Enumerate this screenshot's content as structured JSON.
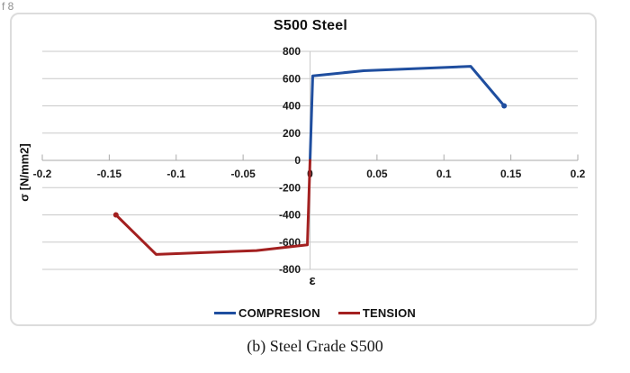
{
  "page": {
    "corner_text": "f 8",
    "caption": "(b) Steel Grade S500"
  },
  "chart_data": {
    "type": "line",
    "title": "S500 Steel",
    "xlabel": "ε",
    "ylabel": "σ [N/mm2]",
    "xlim": [
      -0.2,
      0.2
    ],
    "ylim": [
      -800,
      800
    ],
    "grid": true,
    "legend_position": "bottom",
    "x_ticks": [
      -0.2,
      -0.15,
      -0.1,
      -0.05,
      0,
      0.05,
      0.1,
      0.15,
      0.2
    ],
    "x_tick_labels": [
      "-0.2",
      "-0.15",
      "-0.1",
      "-0.05",
      "0",
      "0.05",
      "0.1",
      "0.15",
      "0.2"
    ],
    "y_ticks": [
      800,
      600,
      400,
      200,
      0,
      -200,
      -400,
      -600,
      -800
    ],
    "y_tick_labels": [
      "800",
      "600",
      "400",
      "200",
      "0",
      "-200",
      "-400",
      "-600",
      "-800"
    ],
    "series": [
      {
        "name": "COMPRESION",
        "color": "#1F4E9F",
        "points": [
          [
            0,
            0
          ],
          [
            0.002,
            620
          ],
          [
            0.04,
            658
          ],
          [
            0.12,
            690
          ],
          [
            0.145,
            400
          ]
        ],
        "end_marker": true
      },
      {
        "name": "TENSION",
        "color": "#A32020",
        "points": [
          [
            0,
            0
          ],
          [
            -0.002,
            -620
          ],
          [
            -0.04,
            -662
          ],
          [
            -0.115,
            -690
          ],
          [
            -0.145,
            -400
          ]
        ],
        "end_marker": true
      }
    ],
    "colors": {
      "gridline": "#c9c9c9",
      "axis": "#aaaaaa",
      "tick_label": "#1a1a1a",
      "frame_border": "#dcdcdc"
    }
  }
}
